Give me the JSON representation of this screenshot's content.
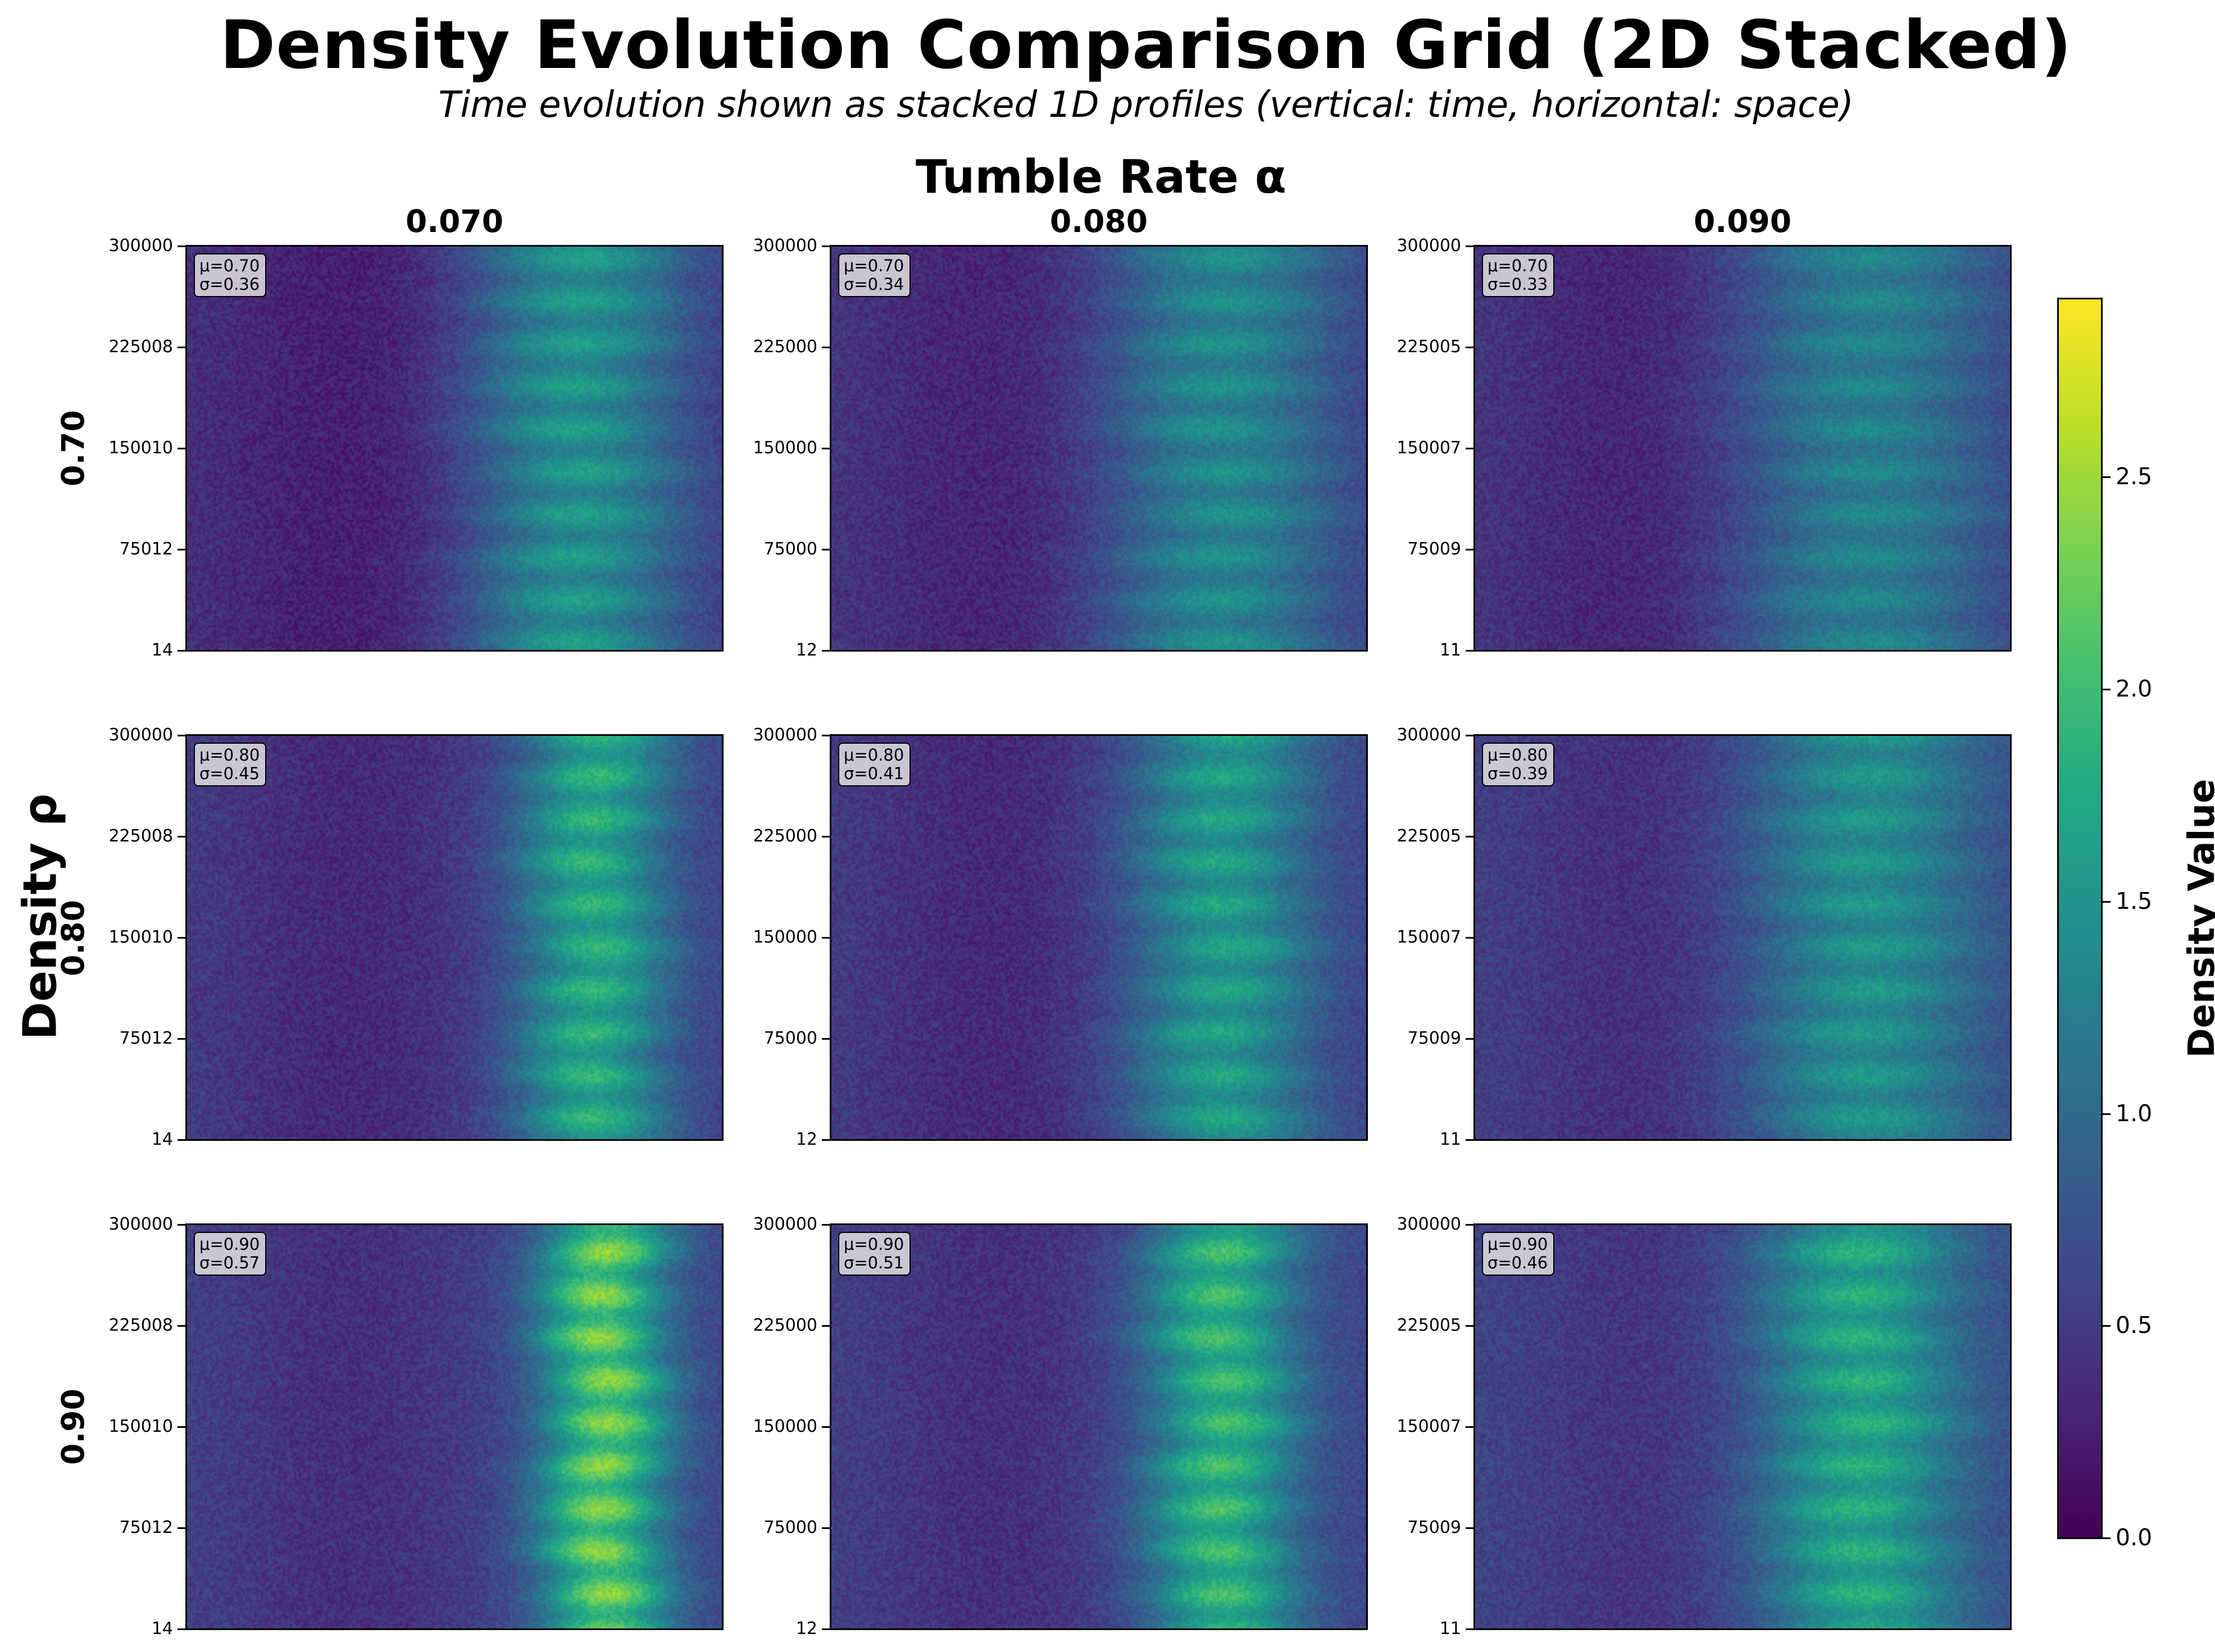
{
  "title": "Density Evolution Comparison Grid (2D Stacked)",
  "subtitle": "Time evolution shown as stacked 1D profiles (vertical: time, horizontal: space)",
  "column_super_label": "Tumble Rate α",
  "row_super_label": "Density ρ",
  "columns": [
    "0.070",
    "0.080",
    "0.090"
  ],
  "rows": [
    "0.70",
    "0.80",
    "0.90"
  ],
  "colorbar": {
    "label": "Density Value",
    "colormap": "viridis",
    "range": [
      0,
      2.92
    ],
    "ticks": [
      "0.0",
      "0.5",
      "1.0",
      "1.5",
      "2.0",
      "2.5"
    ]
  },
  "chart_data": [
    {
      "type": "heatmap",
      "row": "0.70",
      "col": "0.070",
      "stats": {
        "mu": "μ=0.70",
        "sigma": "σ=0.36"
      },
      "yticks": [
        "14",
        "75012",
        "150010",
        "225008",
        "300000"
      ],
      "ylim": [
        14,
        300000
      ],
      "band": {
        "center": 0.73,
        "width": 0.14,
        "peak": 1.65
      },
      "background_level": 0.45
    },
    {
      "type": "heatmap",
      "row": "0.70",
      "col": "0.080",
      "stats": {
        "mu": "μ=0.70",
        "sigma": "σ=0.34"
      },
      "yticks": [
        "12",
        "75000",
        "150000",
        "225000",
        "300000"
      ],
      "ylim": [
        12,
        300000
      ],
      "band": {
        "center": 0.73,
        "width": 0.15,
        "peak": 1.5
      },
      "background_level": 0.5
    },
    {
      "type": "heatmap",
      "row": "0.70",
      "col": "0.090",
      "stats": {
        "mu": "μ=0.70",
        "sigma": "σ=0.33"
      },
      "yticks": [
        "11",
        "75009",
        "150007",
        "225005",
        "300000"
      ],
      "ylim": [
        11,
        300000
      ],
      "band": {
        "center": 0.73,
        "width": 0.17,
        "peak": 1.4
      },
      "background_level": 0.5
    },
    {
      "type": "heatmap",
      "row": "0.80",
      "col": "0.070",
      "stats": {
        "mu": "μ=0.80",
        "sigma": "σ=0.45"
      },
      "yticks": [
        "14",
        "75012",
        "150010",
        "225008",
        "300000"
      ],
      "ylim": [
        14,
        300000
      ],
      "band": {
        "center": 0.76,
        "width": 0.1,
        "peak": 1.95
      },
      "background_level": 0.55
    },
    {
      "type": "heatmap",
      "row": "0.80",
      "col": "0.080",
      "stats": {
        "mu": "μ=0.80",
        "sigma": "σ=0.41"
      },
      "yticks": [
        "12",
        "75000",
        "150000",
        "225000",
        "300000"
      ],
      "ylim": [
        12,
        300000
      ],
      "band": {
        "center": 0.73,
        "width": 0.12,
        "peak": 1.75
      },
      "background_level": 0.55
    },
    {
      "type": "heatmap",
      "row": "0.80",
      "col": "0.090",
      "stats": {
        "mu": "μ=0.80",
        "sigma": "σ=0.39"
      },
      "yticks": [
        "11",
        "75009",
        "150007",
        "225005",
        "300000"
      ],
      "ylim": [
        11,
        300000
      ],
      "band": {
        "center": 0.73,
        "width": 0.15,
        "peak": 1.6
      },
      "background_level": 0.6
    },
    {
      "type": "heatmap",
      "row": "0.90",
      "col": "0.070",
      "stats": {
        "mu": "μ=0.90",
        "sigma": "σ=0.57"
      },
      "yticks": [
        "14",
        "75012",
        "150010",
        "225008",
        "300000"
      ],
      "ylim": [
        14,
        300000
      ],
      "band": {
        "center": 0.78,
        "width": 0.085,
        "peak": 2.45
      },
      "background_level": 0.6
    },
    {
      "type": "heatmap",
      "row": "0.90",
      "col": "0.080",
      "stats": {
        "mu": "μ=0.90",
        "sigma": "σ=0.51"
      },
      "yticks": [
        "12",
        "75000",
        "150000",
        "225000",
        "300000"
      ],
      "ylim": [
        12,
        300000
      ],
      "band": {
        "center": 0.73,
        "width": 0.1,
        "peak": 2.1
      },
      "background_level": 0.6
    },
    {
      "type": "heatmap",
      "row": "0.90",
      "col": "0.090",
      "stats": {
        "mu": "μ=0.90",
        "sigma": "σ=0.46"
      },
      "yticks": [
        "11",
        "75009",
        "150007",
        "225005",
        "300000"
      ],
      "ylim": [
        11,
        300000
      ],
      "band": {
        "center": 0.72,
        "width": 0.13,
        "peak": 1.9
      },
      "background_level": 0.65
    }
  ]
}
